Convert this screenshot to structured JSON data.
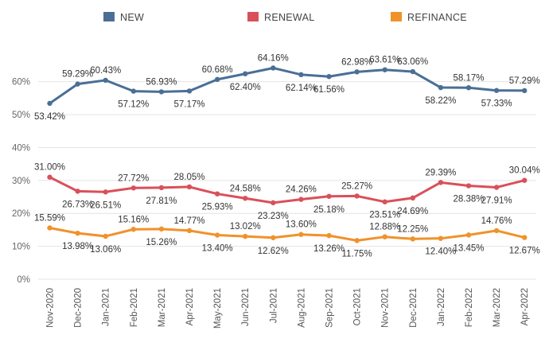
{
  "chart_data": {
    "type": "line",
    "categories": [
      "Nov-2020",
      "Dec-2020",
      "Jan-2021",
      "Feb-2021",
      "Mar-2021",
      "Apr-2021",
      "May-2021",
      "Jun-2021",
      "Jul-2021",
      "Aug-2021",
      "Sep-2021",
      "Oct-2021",
      "Nov-2021",
      "Dec-2021",
      "Jan-2022",
      "Feb-2022",
      "Mar-2022",
      "Apr-2022"
    ],
    "y_ticks": [
      "0%",
      "10%",
      "20%",
      "30%",
      "40%",
      "50%",
      "60%"
    ],
    "ylim": [
      0,
      70
    ],
    "grid": true,
    "legend_position": "top",
    "series": [
      {
        "name": "NEW",
        "color": "#4a6f96",
        "values": [
          53.42,
          59.29,
          60.43,
          57.12,
          56.93,
          57.17,
          60.68,
          62.4,
          64.16,
          62.14,
          61.56,
          62.98,
          63.61,
          63.06,
          58.22,
          58.17,
          57.33,
          57.29
        ],
        "labels": [
          "53.42%",
          "59.29%",
          "60.43%",
          "57.12%",
          "56.93%",
          "57.17%",
          "60.68%",
          "62.40%",
          "64.16%",
          "62.14%",
          "61.56%",
          "62.98%",
          "63.61%",
          "63.06%",
          "58.22%",
          "58.17%",
          "57.33%",
          "57.29%"
        ]
      },
      {
        "name": "RENEWAL",
        "color": "#d9505a",
        "values": [
          31.0,
          26.73,
          26.51,
          27.72,
          27.81,
          28.05,
          25.93,
          24.58,
          23.23,
          24.26,
          25.18,
          25.27,
          23.51,
          24.69,
          29.39,
          28.38,
          27.91,
          30.04
        ],
        "labels": [
          "31.00%",
          "26.73%",
          "26.51%",
          "27.72%",
          "27.81%",
          "28.05%",
          "25.93%",
          "24.58%",
          "23.23%",
          "24.26%",
          "25.18%",
          "25.27%",
          "23.51%",
          "24.69%",
          "29.39%",
          "28.38%",
          "27.91%",
          "30.04%"
        ]
      },
      {
        "name": "REFINANCE",
        "color": "#f0922b",
        "values": [
          15.59,
          13.98,
          13.06,
          15.16,
          15.26,
          14.77,
          13.4,
          13.02,
          12.62,
          13.6,
          13.26,
          11.75,
          12.88,
          12.25,
          12.4,
          13.45,
          14.76,
          12.67
        ],
        "labels": [
          "15.59%",
          "13.98%",
          "13.06%",
          "15.16%",
          "15.26%",
          "14.77%",
          "13.40%",
          "13.02%",
          "12.62%",
          "13.60%",
          "13.26%",
          "11.75%",
          "12.88%",
          "12.25%",
          "12.40%",
          "13.45%",
          "14.76%",
          "12.67%"
        ]
      }
    ]
  }
}
